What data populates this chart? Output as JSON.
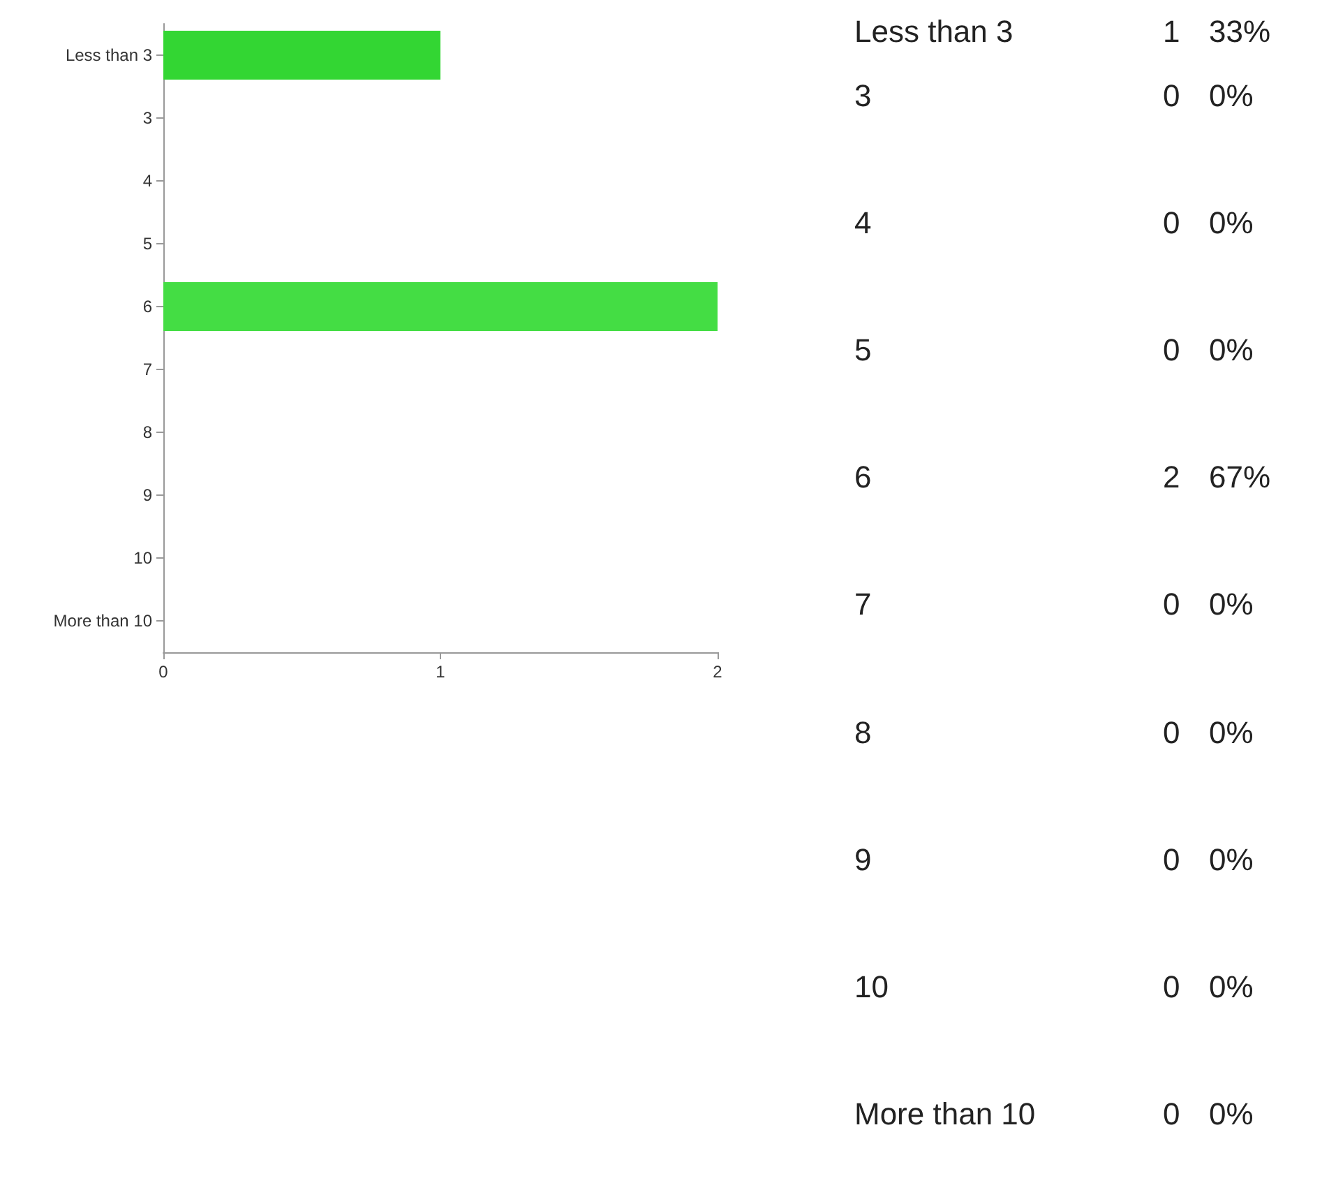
{
  "chart_data": {
    "type": "bar",
    "orientation": "horizontal",
    "categories": [
      "Less than 3",
      "3",
      "4",
      "5",
      "6",
      "7",
      "8",
      "9",
      "10",
      "More than 10"
    ],
    "values": [
      1,
      0,
      0,
      0,
      2,
      0,
      0,
      0,
      0,
      0
    ],
    "colors": [
      "#33d633",
      "#33d633",
      "#33d633",
      "#33d633",
      "#44dd44",
      "#44dd44",
      "#44dd44",
      "#44dd44",
      "#44dd44",
      "#44dd44"
    ],
    "xlim": [
      0,
      2
    ],
    "xticks": [
      0,
      1,
      2
    ],
    "annotations": [
      "1",
      "33%",
      "0",
      "0%",
      "0",
      "0%",
      "0",
      "0%",
      "2",
      "67%",
      "0",
      "0%",
      "0",
      "0%",
      "0",
      "0%",
      "0",
      "0%",
      "0",
      "0%"
    ]
  }
}
